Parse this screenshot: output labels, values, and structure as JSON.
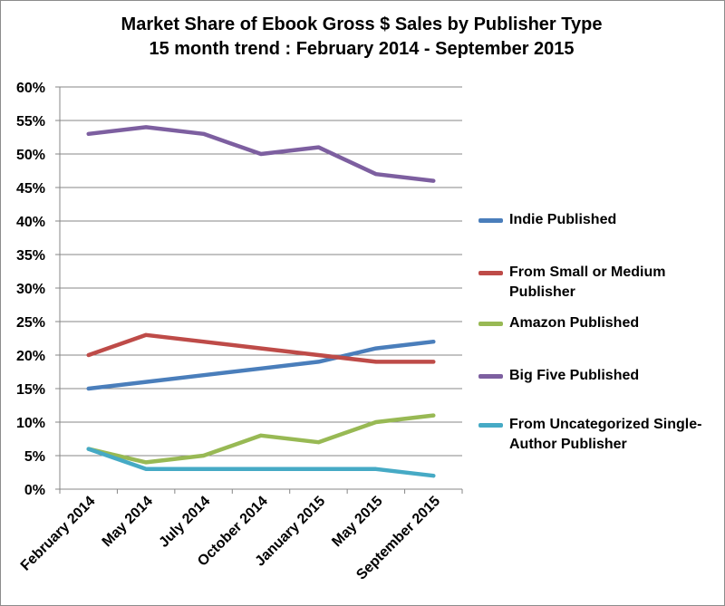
{
  "chart_data": {
    "type": "line",
    "title": "Market Share of Ebook Gross $ Sales by Publisher Type",
    "subtitle": "15 month trend : February 2014 - September 2015",
    "categories": [
      "February 2014",
      "May 2014",
      "July 2014",
      "October 2014",
      "January 2015",
      "May 2015",
      "September 2015"
    ],
    "y_tick_labels": [
      "0%",
      "5%",
      "10%",
      "15%",
      "20%",
      "25%",
      "30%",
      "35%",
      "40%",
      "45%",
      "50%",
      "55%",
      "60%"
    ],
    "ylim": [
      0,
      60
    ],
    "y_unit": "%",
    "grid": "horizontal",
    "legend_position": "right",
    "series": [
      {
        "name": "Indie Published",
        "color": "#4a7ebb",
        "values": [
          15,
          16,
          17,
          18,
          19,
          21,
          22
        ]
      },
      {
        "name": "From Small or Medium Publisher",
        "color": "#be4b48",
        "values": [
          20,
          23,
          22,
          21,
          20,
          19,
          19
        ]
      },
      {
        "name": "Amazon Published",
        "color": "#98b954",
        "values": [
          6,
          4,
          5,
          8,
          7,
          10,
          11
        ]
      },
      {
        "name": "Big Five Published",
        "color": "#7d5fa0",
        "values": [
          53,
          54,
          53,
          50,
          51,
          47,
          46
        ]
      },
      {
        "name": "From Uncategorized Single-Author Publisher",
        "color": "#46aac5",
        "values": [
          6,
          3,
          3,
          3,
          3,
          3,
          2
        ]
      }
    ]
  }
}
